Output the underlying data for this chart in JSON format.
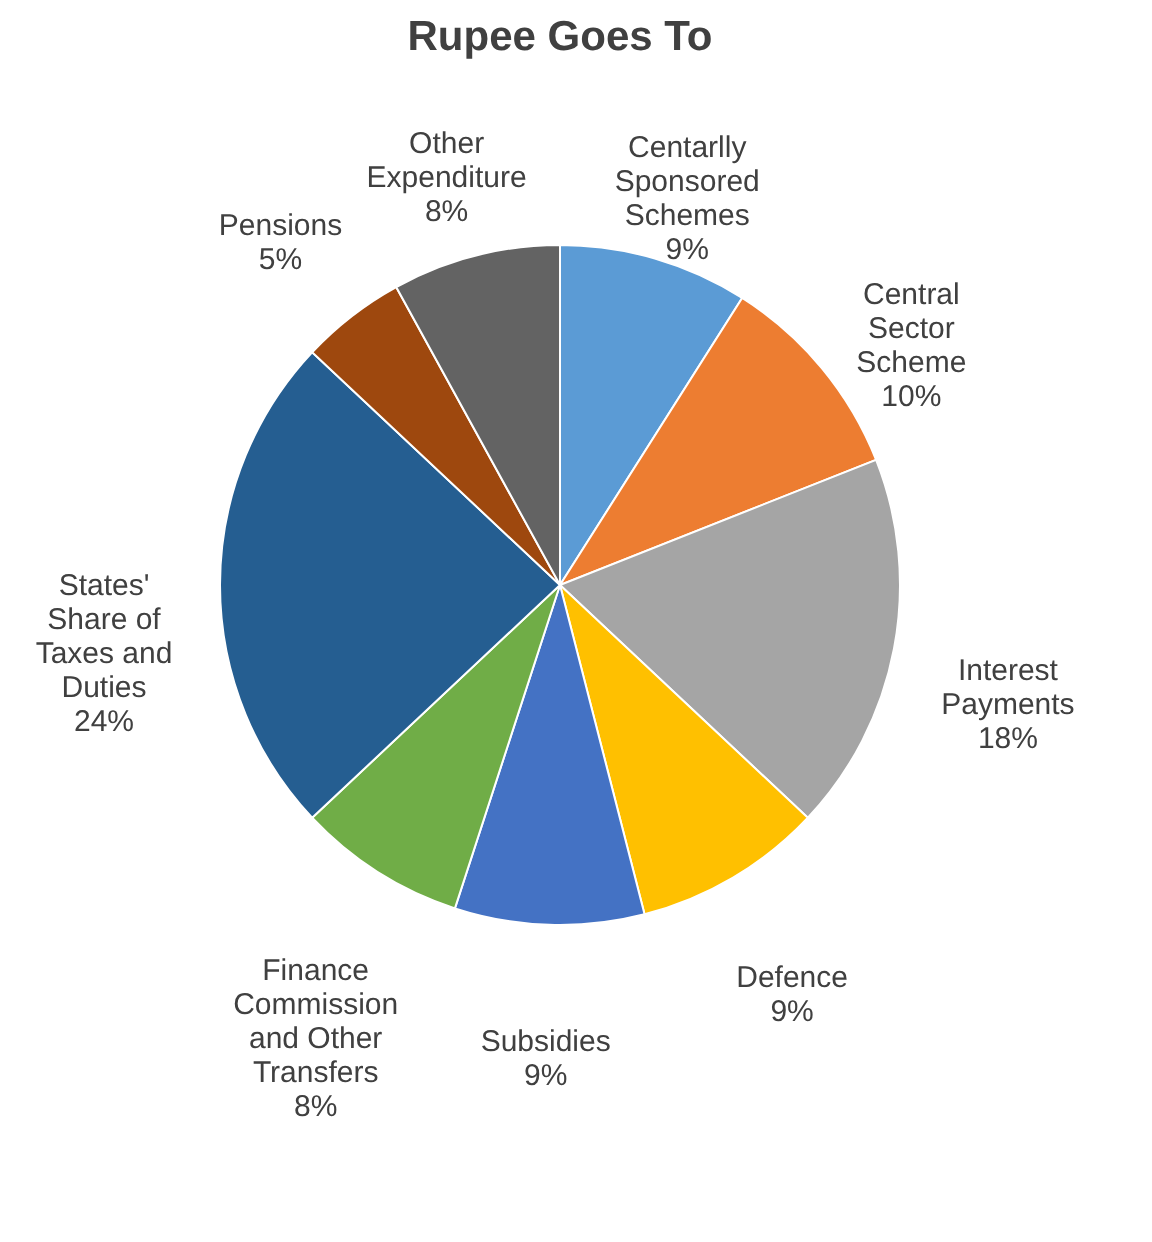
{
  "chart_data": {
    "type": "pie",
    "title": "Rupee Goes To",
    "categories": [
      "Centarlly Sponsored Schemes",
      "Central Sector Scheme",
      "Interest Payments",
      "Defence",
      "Subsidies",
      "Finance Commission and Other Transfers",
      "States' Share of Taxes and Duties",
      "Pensions",
      "Other Expenditure"
    ],
    "values": [
      9,
      10,
      18,
      9,
      9,
      8,
      24,
      5,
      8
    ],
    "value_labels": [
      "9%",
      "10%",
      "18%",
      "9%",
      "9%",
      "8%",
      "24%",
      "5%",
      "8%"
    ],
    "colors": [
      "#5b9bd5",
      "#ed7d31",
      "#a5a5a5",
      "#ffc000",
      "#4472c4",
      "#70ad47",
      "#255e91",
      "#9e480e",
      "#636363"
    ],
    "legend": false
  }
}
